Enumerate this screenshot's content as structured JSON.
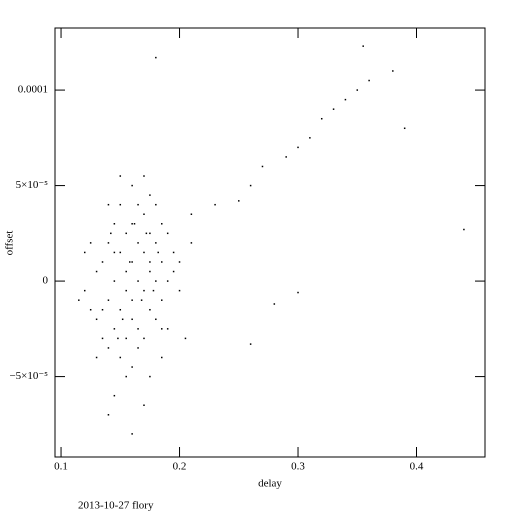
{
  "chart_data": {
    "type": "scatter",
    "x_label": "delay",
    "y_label": "offset",
    "footer": "2013-10-27 flory",
    "color": "#000000",
    "xlim": [
      0.0949,
      0.4578
    ],
    "ylim": [
      -9.21e-05,
      0.0001325
    ],
    "xticks": [
      0.1,
      0.2,
      0.3,
      0.4
    ],
    "yticks": [
      {
        "value": -5e-05,
        "label": "−5×10⁻⁵"
      },
      0,
      {
        "value": 5e-05,
        "label": "5×10⁻⁵"
      },
      0.0001
    ],
    "x": [
      0.12,
      0.125,
      0.13,
      0.13,
      0.135,
      0.135,
      0.14,
      0.14,
      0.14,
      0.145,
      0.145,
      0.145,
      0.15,
      0.15,
      0.15,
      0.15,
      0.155,
      0.155,
      0.155,
      0.16,
      0.16,
      0.16,
      0.16,
      0.16,
      0.16,
      0.165,
      0.165,
      0.165,
      0.165,
      0.17,
      0.17,
      0.17,
      0.17,
      0.17,
      0.175,
      0.175,
      0.175,
      0.175,
      0.18,
      0.18,
      0.18,
      0.18,
      0.185,
      0.185,
      0.185,
      0.19,
      0.19,
      0.19,
      0.195,
      0.2,
      0.2,
      0.205,
      0.21,
      0.12,
      0.15,
      0.14,
      0.155,
      0.175,
      0.185,
      0.13,
      0.115,
      0.125,
      0.135,
      0.145,
      0.155,
      0.165,
      0.175,
      0.185,
      0.195,
      0.142,
      0.152,
      0.162,
      0.172,
      0.182,
      0.148,
      0.158,
      0.168,
      0.178,
      0.21,
      0.23,
      0.25,
      0.26,
      0.27,
      0.29,
      0.3,
      0.31,
      0.32,
      0.33,
      0.34,
      0.35,
      0.36,
      0.355,
      0.38,
      0.39,
      0.44,
      0.28,
      0.3,
      0.26,
      0.18,
      0.16,
      0.14,
      0.145,
      0.17
    ],
    "values": [
      -5e-06,
      -1.5e-05,
      5e-06,
      -2e-05,
      1e-05,
      -3e-05,
      2e-05,
      -1e-05,
      -3.5e-05,
      3e-05,
      0,
      -2.5e-05,
      4e-05,
      1.5e-05,
      -1.5e-05,
      -4e-05,
      2.5e-05,
      -5e-06,
      -3e-05,
      5e-05,
      3e-05,
      1e-05,
      -1e-05,
      -2e-05,
      -4.5e-05,
      4e-05,
      2e-05,
      0,
      -2.5e-05,
      5.5e-05,
      3.5e-05,
      1.5e-05,
      -5e-06,
      -3e-05,
      4.5e-05,
      2.5e-05,
      5e-06,
      -1.5e-05,
      4e-05,
      2e-05,
      0,
      -2e-05,
      3e-05,
      1e-05,
      -1e-05,
      2.5e-05,
      0,
      -2.5e-05,
      1.5e-05,
      1e-05,
      -5e-06,
      -3e-05,
      2e-05,
      1.5e-05,
      5.5e-05,
      4e-05,
      -5e-05,
      -5e-05,
      -4e-05,
      -4e-05,
      -1e-05,
      2e-05,
      -1.5e-05,
      1.5e-05,
      5e-06,
      -3.5e-05,
      1e-05,
      -2.5e-05,
      5e-06,
      2.5e-05,
      -2e-05,
      3e-05,
      2.5e-05,
      1.5e-05,
      -3e-05,
      1e-05,
      -1e-05,
      -5e-06,
      3.5e-05,
      4e-05,
      4.2e-05,
      5e-05,
      6e-05,
      6.5e-05,
      7e-05,
      7.5e-05,
      8.5e-05,
      9e-05,
      9.5e-05,
      0.0001,
      0.000105,
      0.000123,
      0.00011,
      8e-05,
      2.7e-05,
      -1.2e-05,
      -6e-06,
      -3.3e-05,
      0.000117,
      -8e-05,
      -7e-05,
      -6e-05,
      -6.5e-05
    ]
  }
}
